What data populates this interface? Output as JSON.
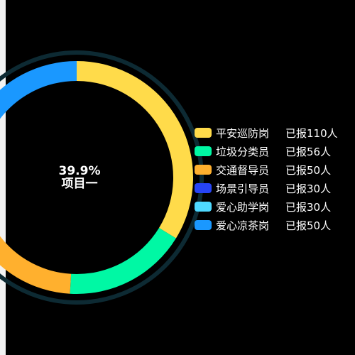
{
  "chart_data": {
    "type": "pie",
    "center_label": {
      "percent": "39.9%",
      "name": "项目一"
    },
    "categories": [
      "平安巡防岗",
      "垃圾分类员",
      "交通督导员",
      "场景引导员",
      "爱心助学岗",
      "爱心凉茶岗"
    ],
    "values": [
      110,
      56,
      50,
      30,
      30,
      50
    ],
    "value_labels": [
      "已报110人",
      "已报56人",
      "已报50人",
      "已报30人",
      "已报30人",
      "已报50人"
    ],
    "colors": [
      "#FFDB4A",
      "#00F8A4",
      "#FFB02E",
      "#2644F5",
      "#4FD9FF",
      "#1A98FF"
    ],
    "legend_position": "right",
    "ring_outline_color": "#0D2A33"
  }
}
